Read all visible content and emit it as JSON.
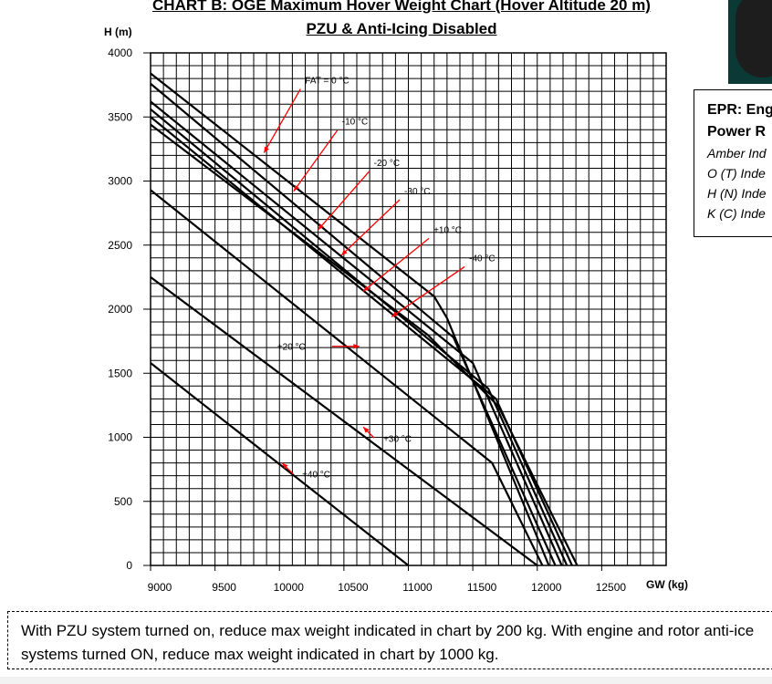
{
  "chart_data": {
    "type": "line",
    "title": "CHART B: OGE Maximum Hover Weight Chart (Hover Altitude 20 m)",
    "subtitle": "PZU & Anti-Icing Disabled",
    "xlabel": "GW (kg)",
    "ylabel": "H (m)",
    "xlim": [
      9000,
      13000
    ],
    "ylim": [
      0,
      4000
    ],
    "x_ticks": [
      9000,
      9500,
      10000,
      10500,
      11000,
      11500,
      12000,
      12500
    ],
    "y_ticks": [
      0,
      500,
      1000,
      1500,
      2000,
      2500,
      3000,
      3500,
      4000
    ],
    "grid": true,
    "series": [
      {
        "name": "FAT = 0 °C",
        "points": [
          [
            9000,
            3840
          ],
          [
            11200,
            2100
          ],
          [
            11300,
            1930
          ],
          [
            12090,
            0
          ]
        ]
      },
      {
        "name": "-10 °C",
        "points": [
          [
            9000,
            3760
          ],
          [
            11350,
            1780
          ],
          [
            12140,
            0
          ]
        ]
      },
      {
        "name": "-20 °C",
        "points": [
          [
            9000,
            3620
          ],
          [
            11500,
            1580
          ],
          [
            12190,
            0
          ]
        ]
      },
      {
        "name": "-30 °C",
        "points": [
          [
            9000,
            3560
          ],
          [
            11620,
            1380
          ],
          [
            12230,
            0
          ]
        ]
      },
      {
        "name": "+10 °C",
        "points": [
          [
            9000,
            3500
          ],
          [
            11680,
            1300
          ],
          [
            12270,
            0
          ]
        ]
      },
      {
        "name": "-40 °C",
        "points": [
          [
            9000,
            3440
          ],
          [
            11150,
            1800
          ],
          [
            11700,
            1240
          ],
          [
            12310,
            0
          ]
        ]
      },
      {
        "name": "+20 °C",
        "points": [
          [
            9000,
            2930
          ],
          [
            11650,
            800
          ],
          [
            12040,
            0
          ]
        ]
      },
      {
        "name": "+30 °C",
        "points": [
          [
            9000,
            2250
          ],
          [
            12000,
            0
          ]
        ]
      },
      {
        "name": "+40 °C",
        "points": [
          [
            9000,
            1580
          ],
          [
            11000,
            0
          ]
        ]
      }
    ],
    "annotations": [
      {
        "text": "FAT = 0 °C",
        "x": 9880,
        "y": 3220
      },
      {
        "text": "-10 °C",
        "x": 10110,
        "y": 2920
      },
      {
        "text": "-20 °C",
        "x": 10300,
        "y": 2620
      },
      {
        "text": "-30 °C",
        "x": 10480,
        "y": 2420
      },
      {
        "text": "+10 °C",
        "x": 10650,
        "y": 2140
      },
      {
        "text": "-40 °C",
        "x": 10870,
        "y": 1940
      },
      {
        "text": "+20 °C",
        "x": 10620,
        "y": 1710
      },
      {
        "text": "+30 °C",
        "x": 10650,
        "y": 1080
      },
      {
        "text": "+40 °C",
        "x": 10020,
        "y": 800
      }
    ]
  },
  "side_panel": {
    "heading_line1": "EPR: Eng",
    "heading_line2": "Power R",
    "lines": [
      "Amber Ind",
      "O (T) Inde",
      "H (N) Inde",
      "K (C) Inde"
    ]
  },
  "note": {
    "text": "With PZU system turned on, reduce max weight indicated in chart by 200 kg. With engine and rotor anti-ice systems turned ON, reduce max weight indicated in chart by 1000 kg."
  },
  "colors": {
    "line": "#000000",
    "arrow": "#ff0000",
    "grid": "#000000"
  }
}
